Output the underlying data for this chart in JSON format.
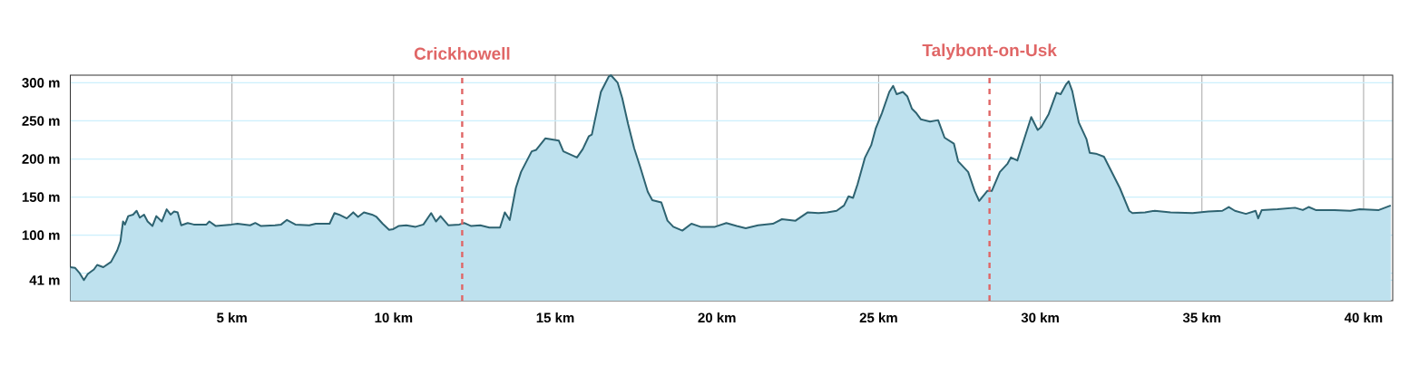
{
  "chart_data": {
    "type": "area",
    "color": "#2e6371",
    "grid": true,
    "marker": "none",
    "xlim": [
      0,
      40.9
    ],
    "ylim": [
      14,
      310
    ],
    "xticks": [
      {
        "value": 5,
        "label": "5 km"
      },
      {
        "value": 10,
        "label": "10 km"
      },
      {
        "value": 15,
        "label": "15 km"
      },
      {
        "value": 20,
        "label": "20 km"
      },
      {
        "value": 25,
        "label": "25 km"
      },
      {
        "value": 30,
        "label": "30 km"
      },
      {
        "value": 35,
        "label": "35 km"
      },
      {
        "value": 40,
        "label": "40 km"
      }
    ],
    "yticks": [
      {
        "value": 41,
        "label": "41 m"
      },
      {
        "value": 50,
        "label": null
      },
      {
        "value": 100,
        "label": "100 m"
      },
      {
        "value": 150,
        "label": "150 m"
      },
      {
        "value": 200,
        "label": "200 m"
      },
      {
        "value": 250,
        "label": "250 m"
      },
      {
        "value": 300,
        "label": "300 m"
      }
    ],
    "ref_lines": [
      {
        "axis": "x",
        "value": 12.12,
        "label": "Crickhowell",
        "color": "#e06666",
        "line_style": "dashed"
      },
      {
        "axis": "x",
        "value": 28.43,
        "label": "Talybont-on-Usk",
        "color": "#e06666",
        "line_style": "dashed"
      }
    ],
    "x": [
      0.0,
      0.15,
      0.29,
      0.42,
      0.54,
      0.73,
      0.83,
      1.02,
      1.26,
      1.45,
      1.55,
      1.63,
      1.69,
      1.79,
      1.94,
      2.05,
      2.15,
      2.28,
      2.39,
      2.54,
      2.66,
      2.83,
      2.98,
      3.1,
      3.21,
      3.32,
      3.43,
      3.63,
      3.82,
      4.21,
      4.3,
      4.5,
      4.99,
      5.17,
      5.56,
      5.72,
      5.9,
      6.33,
      6.52,
      6.7,
      6.96,
      7.39,
      7.59,
      8.02,
      8.17,
      8.31,
      8.55,
      8.75,
      8.9,
      9.08,
      9.33,
      9.47,
      9.66,
      9.86,
      9.99,
      10.15,
      10.39,
      10.68,
      10.92,
      11.16,
      11.31,
      11.45,
      11.69,
      12.03,
      12.18,
      12.4,
      12.68,
      12.96,
      13.29,
      13.44,
      13.59,
      13.78,
      13.94,
      14.27,
      14.41,
      14.69,
      15.11,
      15.25,
      15.67,
      15.85,
      16.04,
      16.13,
      16.41,
      16.65,
      16.72,
      16.93,
      17.07,
      17.25,
      17.44,
      17.63,
      17.86,
      18.0,
      18.28,
      18.47,
      18.65,
      18.93,
      19.21,
      19.49,
      19.94,
      20.29,
      20.61,
      20.89,
      21.27,
      21.73,
      22.01,
      22.43,
      22.81,
      23.14,
      23.41,
      23.7,
      23.93,
      24.07,
      24.21,
      24.35,
      24.58,
      24.77,
      24.91,
      25.1,
      25.33,
      25.45,
      25.56,
      25.75,
      25.89,
      26.03,
      26.17,
      26.31,
      26.59,
      26.84,
      27.04,
      27.33,
      27.46,
      27.77,
      27.97,
      28.11,
      28.36,
      28.5,
      28.75,
      28.99,
      29.09,
      29.29,
      29.72,
      29.92,
      30.03,
      30.26,
      30.5,
      30.63,
      30.8,
      30.88,
      30.99,
      31.19,
      31.43,
      31.53,
      31.72,
      31.97,
      32.46,
      32.75,
      32.85,
      33.24,
      33.54,
      34.03,
      34.71,
      35.2,
      35.63,
      35.83,
      36.02,
      36.36,
      36.66,
      36.74,
      36.85,
      37.34,
      37.88,
      38.12,
      38.3,
      38.52,
      39.1,
      39.59,
      39.88,
      40.47,
      40.84
    ],
    "values": [
      58,
      57,
      50,
      41,
      49,
      55,
      61,
      58,
      65,
      80,
      92,
      118,
      114,
      125,
      127,
      132,
      123,
      127,
      118,
      112,
      125,
      118,
      134,
      127,
      131,
      130,
      113,
      116,
      114,
      114,
      118,
      112,
      114,
      115,
      113,
      116,
      112,
      113,
      114,
      120,
      114,
      113,
      115,
      115,
      129,
      127,
      122,
      130,
      124,
      130,
      127,
      124,
      115,
      107,
      108,
      112,
      113,
      111,
      114,
      129,
      118,
      125,
      113,
      114,
      116,
      112,
      113,
      110,
      110,
      130,
      120,
      162,
      183,
      210,
      212,
      227,
      224,
      210,
      202,
      213,
      230,
      232,
      288,
      308,
      310,
      300,
      280,
      246,
      214,
      189,
      157,
      146,
      143,
      119,
      111,
      106,
      115,
      111,
      111,
      116,
      112,
      109,
      113,
      115,
      121,
      119,
      130,
      129,
      130,
      132,
      139,
      151,
      149,
      167,
      202,
      218,
      240,
      260,
      288,
      296,
      285,
      288,
      282,
      266,
      260,
      252,
      249,
      251,
      228,
      220,
      197,
      183,
      158,
      145,
      158,
      158,
      183,
      194,
      202,
      198,
      255,
      238,
      242,
      259,
      287,
      285,
      298,
      302,
      289,
      248,
      226,
      208,
      207,
      203,
      162,
      132,
      129,
      130,
      132,
      130,
      129,
      131,
      132,
      137,
      132,
      128,
      132,
      122,
      133,
      134,
      136,
      133,
      137,
      133,
      133,
      132,
      134,
      133,
      139
    ]
  }
}
